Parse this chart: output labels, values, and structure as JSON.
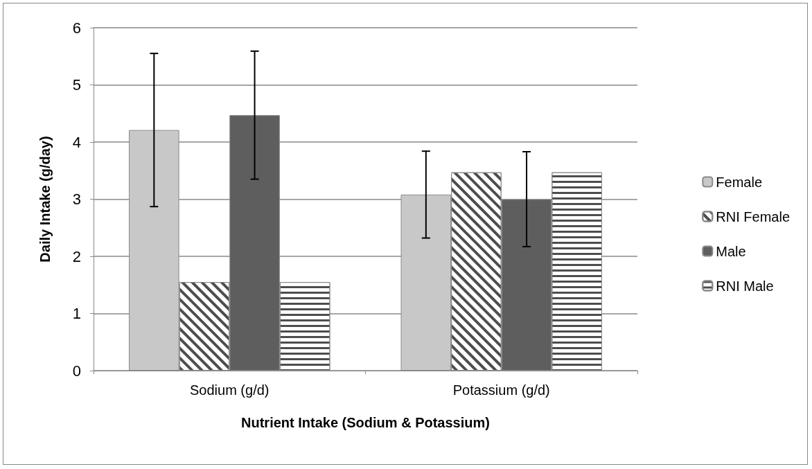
{
  "chart_data": {
    "type": "bar",
    "xlabel": "Nutrient Intake (Sodium & Potassium)",
    "ylabel": "Daily Intake (g/day)",
    "categories": [
      "Sodium (g/d)",
      "Potassium (g/d)"
    ],
    "series": [
      {
        "name": "Female",
        "color": "#c8c8c8",
        "values": [
          4.21,
          3.08
        ],
        "errors": [
          1.34,
          0.76
        ]
      },
      {
        "name": "RNI Female",
        "color": "#ffffff",
        "values": [
          1.55,
          3.47
        ]
      },
      {
        "name": "Male",
        "color": "#5e5e5e",
        "values": [
          4.47,
          3.0
        ],
        "errors": [
          1.12,
          0.83
        ]
      },
      {
        "name": "RNI Male",
        "color": "#ffffff",
        "values": [
          1.55,
          3.47
        ]
      }
    ],
    "ylim": [
      0,
      6
    ],
    "yticks": [
      0,
      1,
      2,
      3,
      4,
      5,
      6
    ],
    "grid": "y",
    "legend": "right"
  }
}
